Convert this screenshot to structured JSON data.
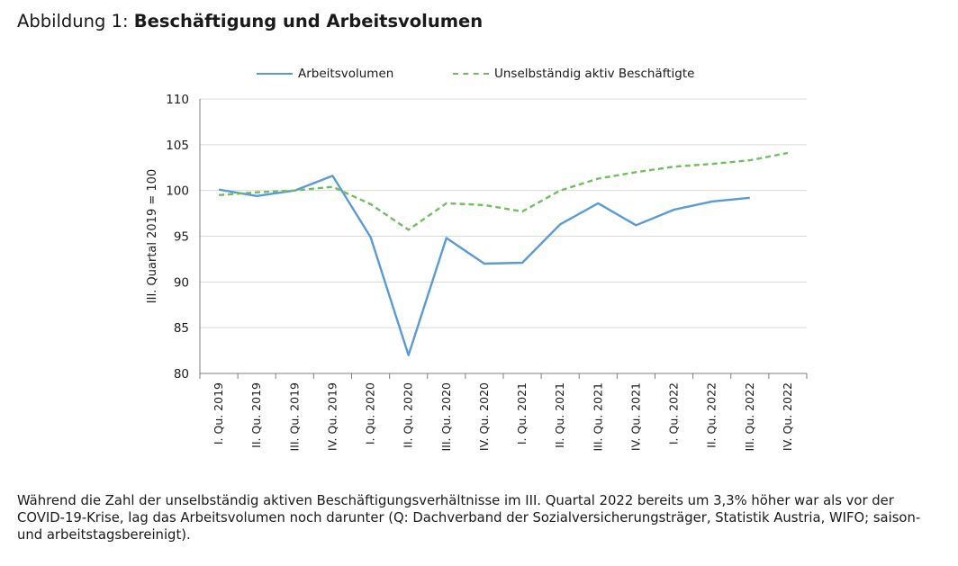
{
  "figure": {
    "title_prefix": "Abbildung 1: ",
    "title_bold": "Beschäftigung und Arbeitsvolumen",
    "caption": "Während die Zahl der unselbständig aktiven Beschäftigungsverhältnisse im III. Quartal 2022 bereits um 3,3% höher war als vor der COVID-19-Krise, lag das Arbeitsvolumen noch darunter (Q: Dachverband der Sozialversicherungsträger, Statistik Austria, WIFO; saison- und arbeitstagsbereinigt)."
  },
  "chart_data": {
    "type": "line",
    "title": "",
    "xlabel": "",
    "ylabel": "III. Quartal 2019 = 100",
    "ylim": [
      80,
      110
    ],
    "yticks": [
      80,
      85,
      90,
      95,
      100,
      105,
      110
    ],
    "grid": true,
    "legend_position": "top",
    "categories": [
      "I. Qu. 2019",
      "II. Qu. 2019",
      "III. Qu. 2019",
      "IV. Qu. 2019",
      "I. Qu. 2020",
      "II. Qu. 2020",
      "III. Qu. 2020",
      "IV. Qu. 2020",
      "I. Qu. 2021",
      "II. Qu. 2021",
      "III. Qu. 2021",
      "IV. Qu. 2021",
      "I. Qu. 2022",
      "II. Qu. 2022",
      "III. Qu. 2022",
      "IV. Qu. 2022"
    ],
    "series": [
      {
        "name": "Arbeitsvolumen",
        "style": "solid",
        "color": "#5B9BD5",
        "values": [
          100.1,
          99.4,
          100.0,
          101.6,
          94.9,
          82.0,
          94.8,
          92.0,
          92.1,
          96.3,
          98.6,
          96.2,
          97.9,
          98.8,
          99.2,
          null
        ]
      },
      {
        "name": "Unselbständig aktiv Beschäftigte",
        "style": "dashed",
        "color": "#70BF5F",
        "values": [
          99.5,
          99.8,
          100.0,
          100.4,
          98.5,
          95.7,
          98.6,
          98.4,
          97.7,
          100.0,
          101.3,
          102.0,
          102.6,
          102.9,
          103.3,
          104.1
        ]
      }
    ]
  }
}
